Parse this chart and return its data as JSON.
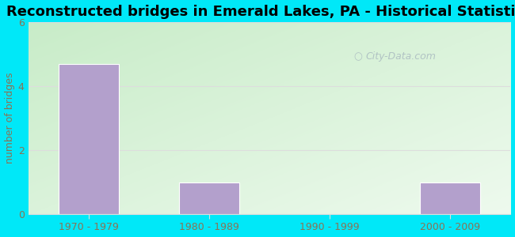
{
  "title": "Reconstructed bridges in Emerald Lakes, PA - Historical Statistics",
  "categories": [
    "1970 - 1979",
    "1980 - 1989",
    "1990 - 1999",
    "2000 - 2009"
  ],
  "values": [
    4.7,
    1.0,
    0,
    1.0
  ],
  "bar_color": "#b3a0cc",
  "ylabel": "number of bridges",
  "ylim": [
    0,
    6
  ],
  "yticks": [
    0,
    2,
    4,
    6
  ],
  "outer_bg_color": "#00e8f8",
  "plot_bg_color_topleft": "#c8ecc8",
  "plot_bg_color_bottomright": "#e8f8e8",
  "title_fontsize": 13,
  "axis_label_color": "#8b7355",
  "tick_label_color": "#8b7355",
  "grid_color": "#dddddd",
  "watermark_text": "City-Data.com",
  "watermark_color": "#aabbc0",
  "bar_width": 0.5
}
